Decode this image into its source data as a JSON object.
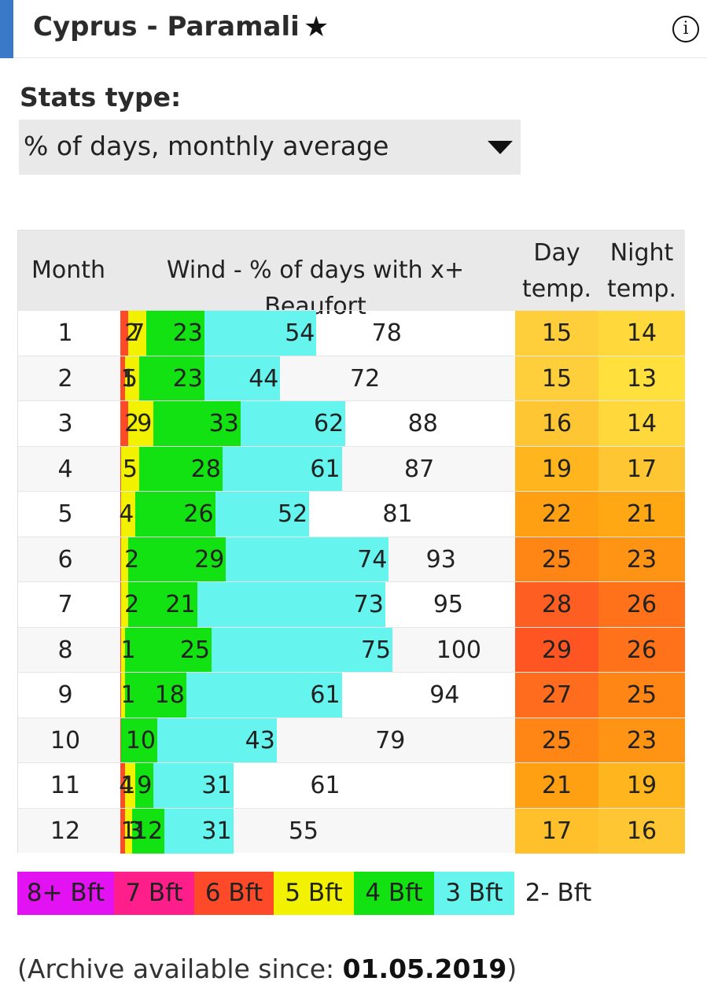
{
  "header": {
    "title": "Cyprus - Paramali",
    "star": "★",
    "info": "i"
  },
  "stats": {
    "label": "Stats type:",
    "selected": "% of days, monthly average"
  },
  "table": {
    "headers": {
      "month": "Month",
      "wind": "Wind - % of days with x+ Beaufort",
      "day_line1": "Day",
      "day_line2": "temp.",
      "night_line1": "Night",
      "night_line2": "temp."
    }
  },
  "colors": {
    "bft8": "#e312f2",
    "bft7": "#ff1e8a",
    "bft6": "#ff4a2a",
    "bft5": "#f2f200",
    "bft4": "#12e212",
    "bft3": "#66f4ee",
    "bft2": "#ffffff"
  },
  "chart_data": {
    "type": "bar",
    "stacked_cumulative": true,
    "categories": [
      "1",
      "2",
      "3",
      "4",
      "5",
      "6",
      "7",
      "8",
      "9",
      "10",
      "11",
      "12"
    ],
    "series": [
      {
        "name": "8+ Bft",
        "values": [
          0,
          0,
          0,
          0,
          0,
          0,
          0,
          0,
          0,
          0,
          0,
          0
        ]
      },
      {
        "name": "7 Bft",
        "values": [
          0,
          0,
          0,
          0,
          0,
          0,
          0,
          0,
          0,
          0,
          0,
          0
        ]
      },
      {
        "name": "6 Bft",
        "values": [
          2,
          1,
          2,
          0,
          0,
          0,
          0,
          0,
          0,
          0,
          1,
          1
        ]
      },
      {
        "name": "5 Bft",
        "values": [
          7,
          5,
          9,
          5,
          4,
          2,
          2,
          1,
          1,
          0,
          4,
          3
        ]
      },
      {
        "name": "4 Bft",
        "values": [
          23,
          23,
          33,
          28,
          26,
          29,
          21,
          25,
          18,
          10,
          9,
          12
        ]
      },
      {
        "name": "3 Bft",
        "values": [
          54,
          44,
          62,
          61,
          52,
          74,
          73,
          75,
          61,
          43,
          31,
          31
        ]
      },
      {
        "name": "2- Bft",
        "values": [
          78,
          72,
          88,
          87,
          81,
          93,
          95,
          100,
          94,
          79,
          61,
          55
        ]
      }
    ],
    "day_temp": [
      15,
      15,
      16,
      19,
      22,
      25,
      28,
      29,
      27,
      25,
      21,
      17
    ],
    "night_temp": [
      14,
      13,
      14,
      17,
      21,
      23,
      26,
      26,
      25,
      23,
      19,
      16
    ],
    "temp_colors_day": [
      "#ffcf3b",
      "#ffcf3b",
      "#ffc634",
      "#ffb61e",
      "#ffa013",
      "#ff8614",
      "#ff5e22",
      "#ff5522",
      "#ff6c1e",
      "#ff8614",
      "#ffa013",
      "#ffc02c"
    ],
    "temp_colors_night": [
      "#ffd83c",
      "#ffe03c",
      "#ffd83c",
      "#ffc634",
      "#ffa813",
      "#ff9313",
      "#ff7219",
      "#ff7219",
      "#ff8614",
      "#ff9313",
      "#ffb61e",
      "#ffc634"
    ]
  },
  "legend": [
    "8+ Bft",
    "7 Bft",
    "6 Bft",
    "5 Bft",
    "4 Bft",
    "3 Bft",
    "2- Bft"
  ],
  "archive": {
    "prefix": "(Archive available since: ",
    "date": "01.05.2019",
    "suffix": ")"
  }
}
